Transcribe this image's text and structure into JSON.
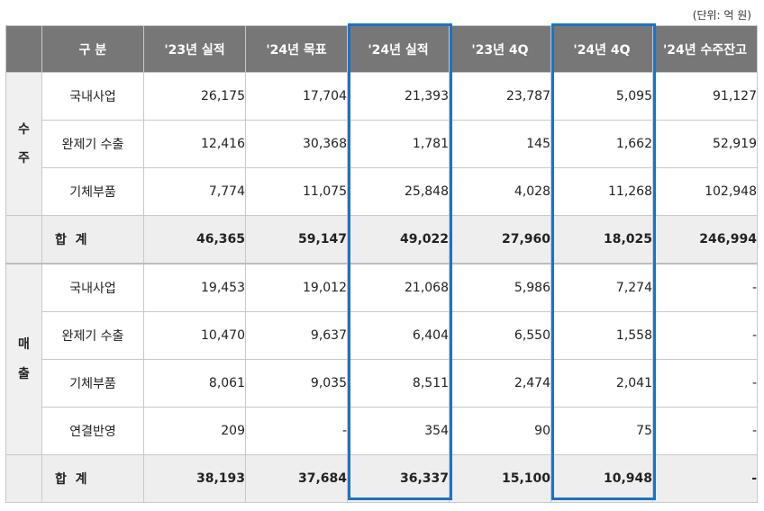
{
  "unit_label": "(단위: 억 원)",
  "headers": [
    "구 분",
    "'23년 실적",
    "'24년 목표",
    "'24년 실적",
    "'23년 4Q",
    "'24년 4Q",
    "'24년 수주잔고"
  ],
  "highlight_color": "#1f72c2",
  "groups": [
    {
      "label": "수\n주",
      "rows": [
        {
          "item": "국내사업",
          "values": [
            "26,175",
            "17,704",
            "21,393",
            "23,787",
            "5,095",
            "91,127"
          ]
        },
        {
          "item": "완제기 수출",
          "values": [
            "12,416",
            "30,368",
            "1,781",
            "145",
            "1,662",
            "52,919"
          ]
        },
        {
          "item": "기체부품",
          "values": [
            "7,774",
            "11,075",
            "25,848",
            "4,028",
            "11,268",
            "102,948"
          ]
        }
      ],
      "total": {
        "item": "합  계",
        "values": [
          "46,365",
          "59,147",
          "49,022",
          "27,960",
          "18,025",
          "246,994"
        ]
      }
    },
    {
      "label": "매\n출",
      "rows": [
        {
          "item": "국내사업",
          "values": [
            "19,453",
            "19,012",
            "21,068",
            "5,986",
            "7,274",
            "-"
          ]
        },
        {
          "item": "완제기 수출",
          "values": [
            "10,470",
            "9,637",
            "6,404",
            "6,550",
            "1,558",
            "-"
          ]
        },
        {
          "item": "기체부품",
          "values": [
            "8,061",
            "9,035",
            "8,511",
            "2,474",
            "2,041",
            "-"
          ]
        },
        {
          "item": "연결반영",
          "values": [
            "209",
            "-",
            "354",
            "90",
            "75",
            "-"
          ]
        }
      ],
      "total": {
        "item": "합  계",
        "values": [
          "38,193",
          "37,684",
          "36,337",
          "15,100",
          "10,948",
          "-"
        ]
      }
    }
  ]
}
